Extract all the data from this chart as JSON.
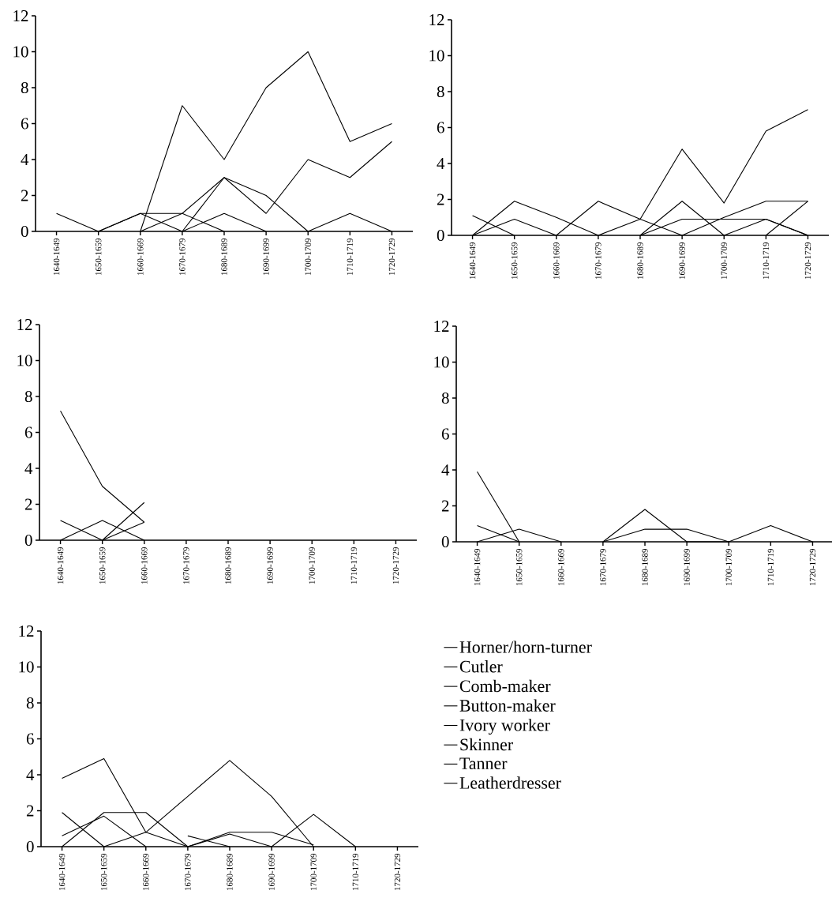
{
  "chart_data": [
    {
      "type": "line",
      "categories": [
        "1640-1649",
        "1650-1659",
        "1660-1669",
        "1670-1679",
        "1680-1689",
        "1690-1699",
        "1700-1709",
        "1710-1719",
        "1720-1729"
      ],
      "ylim": [
        0,
        12
      ],
      "yticks": [
        0,
        2,
        4,
        6,
        8,
        10,
        12
      ],
      "legend": false,
      "marker": "none",
      "line_style": "solid",
      "series": [
        {
          "color": "#000000",
          "values": [
            null,
            null,
            0,
            7,
            4,
            8,
            10,
            5,
            6
          ]
        },
        {
          "color": "#000000",
          "values": [
            null,
            0,
            1,
            0,
            3,
            1,
            4,
            3,
            5
          ]
        },
        {
          "color": "#000000",
          "values": [
            null,
            null,
            0,
            1,
            3,
            2,
            0,
            null,
            null
          ]
        },
        {
          "color": "#000000",
          "values": [
            null,
            null,
            null,
            0,
            1,
            0,
            null,
            null,
            null
          ]
        },
        {
          "color": "#000000",
          "values": [
            null,
            null,
            null,
            null,
            null,
            null,
            0,
            1,
            0
          ]
        },
        {
          "color": "#000000",
          "values": [
            1,
            0,
            1,
            1,
            0,
            null,
            null,
            null,
            null
          ]
        }
      ]
    },
    {
      "type": "line",
      "categories": [
        "1640-1649",
        "1650-1659",
        "1660-1669",
        "1670-1679",
        "1680-1689",
        "1690-1699",
        "1700-1709",
        "1710-1719",
        "1720-1729"
      ],
      "ylim": [
        0,
        12
      ],
      "yticks": [
        0,
        2,
        4,
        6,
        8,
        10,
        12
      ],
      "legend": false,
      "marker": "none",
      "line_style": "solid",
      "series": [
        {
          "color": "#000000",
          "values": [
            null,
            null,
            null,
            null,
            null,
            null,
            null,
            0,
            1.9
          ]
        },
        {
          "color": "#000000",
          "values": [
            null,
            null,
            0,
            1.9,
            0.9,
            4.8,
            1.8,
            5.8,
            7
          ]
        },
        {
          "color": "#000000",
          "values": [
            null,
            null,
            null,
            null,
            0,
            1.9,
            0,
            null,
            null
          ]
        },
        {
          "color": "#000000",
          "values": [
            null,
            null,
            null,
            null,
            null,
            null,
            0,
            0.9,
            0
          ]
        },
        {
          "color": "#000000",
          "values": [
            1.1,
            0,
            null,
            null,
            null,
            null,
            null,
            null,
            null
          ]
        },
        {
          "color": "#000000",
          "values": [
            0,
            0.9,
            0,
            null,
            0,
            0.9,
            0.9,
            0.9,
            0
          ]
        },
        {
          "color": "#000000",
          "values": [
            0,
            1.9,
            1,
            0,
            0.9,
            0,
            null,
            null,
            null
          ]
        },
        {
          "color": "#000000",
          "values": [
            null,
            null,
            null,
            null,
            null,
            0,
            1,
            1.9,
            1.9
          ]
        }
      ]
    },
    {
      "type": "line",
      "categories": [
        "1640-1649",
        "1650-1659",
        "1660-1669",
        "1670-1679",
        "1680-1689",
        "1690-1699",
        "1700-1709",
        "1710-1719",
        "1720-1729"
      ],
      "ylim": [
        0,
        12
      ],
      "yticks": [
        0,
        2,
        4,
        6,
        8,
        10,
        12
      ],
      "legend": false,
      "marker": "none",
      "line_style": "solid",
      "series": [
        {
          "color": "#000000",
          "values": [
            1.1,
            0,
            1,
            null,
            null,
            null,
            null,
            null,
            null
          ]
        },
        {
          "color": "#000000",
          "values": [
            0,
            1.1,
            0,
            null,
            null,
            null,
            null,
            null,
            null
          ]
        },
        {
          "color": "#000000",
          "values": [
            null,
            0,
            2.1,
            null,
            null,
            null,
            null,
            null,
            null
          ]
        },
        {
          "color": "#000000",
          "values": [
            7.2,
            3,
            1,
            null,
            null,
            null,
            null,
            null,
            null
          ]
        }
      ]
    },
    {
      "type": "line",
      "categories": [
        "1640-1649",
        "1650-1659",
        "1660-1669",
        "1670-1679",
        "1680-1689",
        "1690-1699",
        "1700-1709",
        "1710-1719",
        "1720-1729"
      ],
      "ylim": [
        0,
        12
      ],
      "yticks": [
        0,
        2,
        4,
        6,
        8,
        10,
        12
      ],
      "legend": false,
      "marker": "none",
      "line_style": "solid",
      "series": [
        {
          "color": "#000000",
          "values": [
            0.9,
            0,
            null,
            0,
            1.8,
            0,
            0,
            0.9,
            0
          ]
        },
        {
          "color": "#000000",
          "values": [
            0,
            0.7,
            0,
            null,
            null,
            null,
            null,
            null,
            null
          ]
        },
        {
          "color": "#000000",
          "values": [
            3.9,
            0,
            null,
            null,
            null,
            null,
            null,
            null,
            null
          ]
        },
        {
          "color": "#000000",
          "values": [
            null,
            null,
            null,
            0,
            0.7,
            0.7,
            0,
            null,
            null
          ]
        }
      ]
    },
    {
      "type": "line",
      "categories": [
        "1640-1649",
        "1650-1659",
        "1660-1669",
        "1670-1679",
        "1680-1689",
        "1690-1699",
        "1700-1709",
        "1710-1719",
        "1720-1729"
      ],
      "ylim": [
        0,
        12
      ],
      "yticks": [
        0,
        2,
        4,
        6,
        8,
        10,
        12
      ],
      "legend": "right",
      "marker": "none",
      "line_style": "solid",
      "series": [
        {
          "name": "Horner/horn-turner",
          "color": "#000000",
          "values": [
            0,
            1.9,
            1.9,
            0,
            null,
            null,
            null,
            null,
            null
          ]
        },
        {
          "name": "Cutler",
          "color": "#000000",
          "values": [
            3.8,
            4.9,
            0.8,
            2.8,
            4.8,
            2.8,
            0,
            null,
            null
          ]
        },
        {
          "name": "Comb-maker",
          "color": "#000000",
          "values": [
            null,
            null,
            null,
            0,
            0.8,
            0.8,
            0.1,
            null,
            null
          ]
        },
        {
          "name": "Button-maker",
          "color": "#000000",
          "values": [
            1.9,
            0,
            null,
            null,
            null,
            null,
            null,
            null,
            null
          ]
        },
        {
          "name": "Ivory worker",
          "color": "#000000",
          "values": [
            null,
            null,
            null,
            0,
            0.7,
            0,
            null,
            null,
            null
          ]
        },
        {
          "name": "Skinner",
          "color": "#000000",
          "values": [
            null,
            0,
            0.8,
            0,
            null,
            null,
            null,
            null,
            null
          ]
        },
        {
          "name": "Tanner",
          "color": "#000000",
          "values": [
            0.6,
            1.7,
            0,
            null,
            null,
            0,
            1.8,
            0,
            null
          ]
        },
        {
          "name": "Leatherdresser",
          "color": "#000000",
          "values": [
            null,
            null,
            null,
            0.6,
            0,
            null,
            null,
            null,
            null
          ]
        }
      ]
    }
  ]
}
